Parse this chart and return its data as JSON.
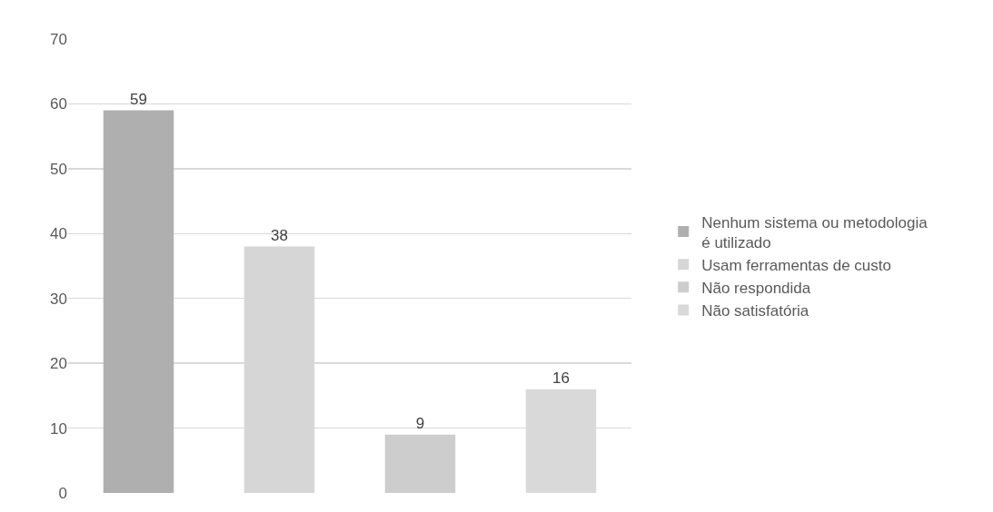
{
  "chart_data": {
    "type": "bar",
    "categories": [
      null,
      null,
      null,
      null
    ],
    "series": [
      {
        "name": "Nenhum sistema ou metodologia é utilizado",
        "color": "#afafaf",
        "values": [
          59,
          null,
          null,
          null
        ]
      },
      {
        "name": "Usam ferramentas de custo",
        "color": "#d6d6d6",
        "values": [
          null,
          38,
          null,
          null
        ]
      },
      {
        "name": "Não respondida",
        "color": "#cdcdcd",
        "values": [
          null,
          null,
          9,
          null
        ]
      },
      {
        "name": "Não satisfatória",
        "color": "#d9d9d9",
        "values": [
          null,
          null,
          null,
          16
        ]
      }
    ],
    "ylim": [
      0,
      70
    ],
    "yticks": [
      0,
      10,
      20,
      30,
      40,
      50,
      60,
      70
    ],
    "grid": "y",
    "legend": "right",
    "data_labels": true
  }
}
